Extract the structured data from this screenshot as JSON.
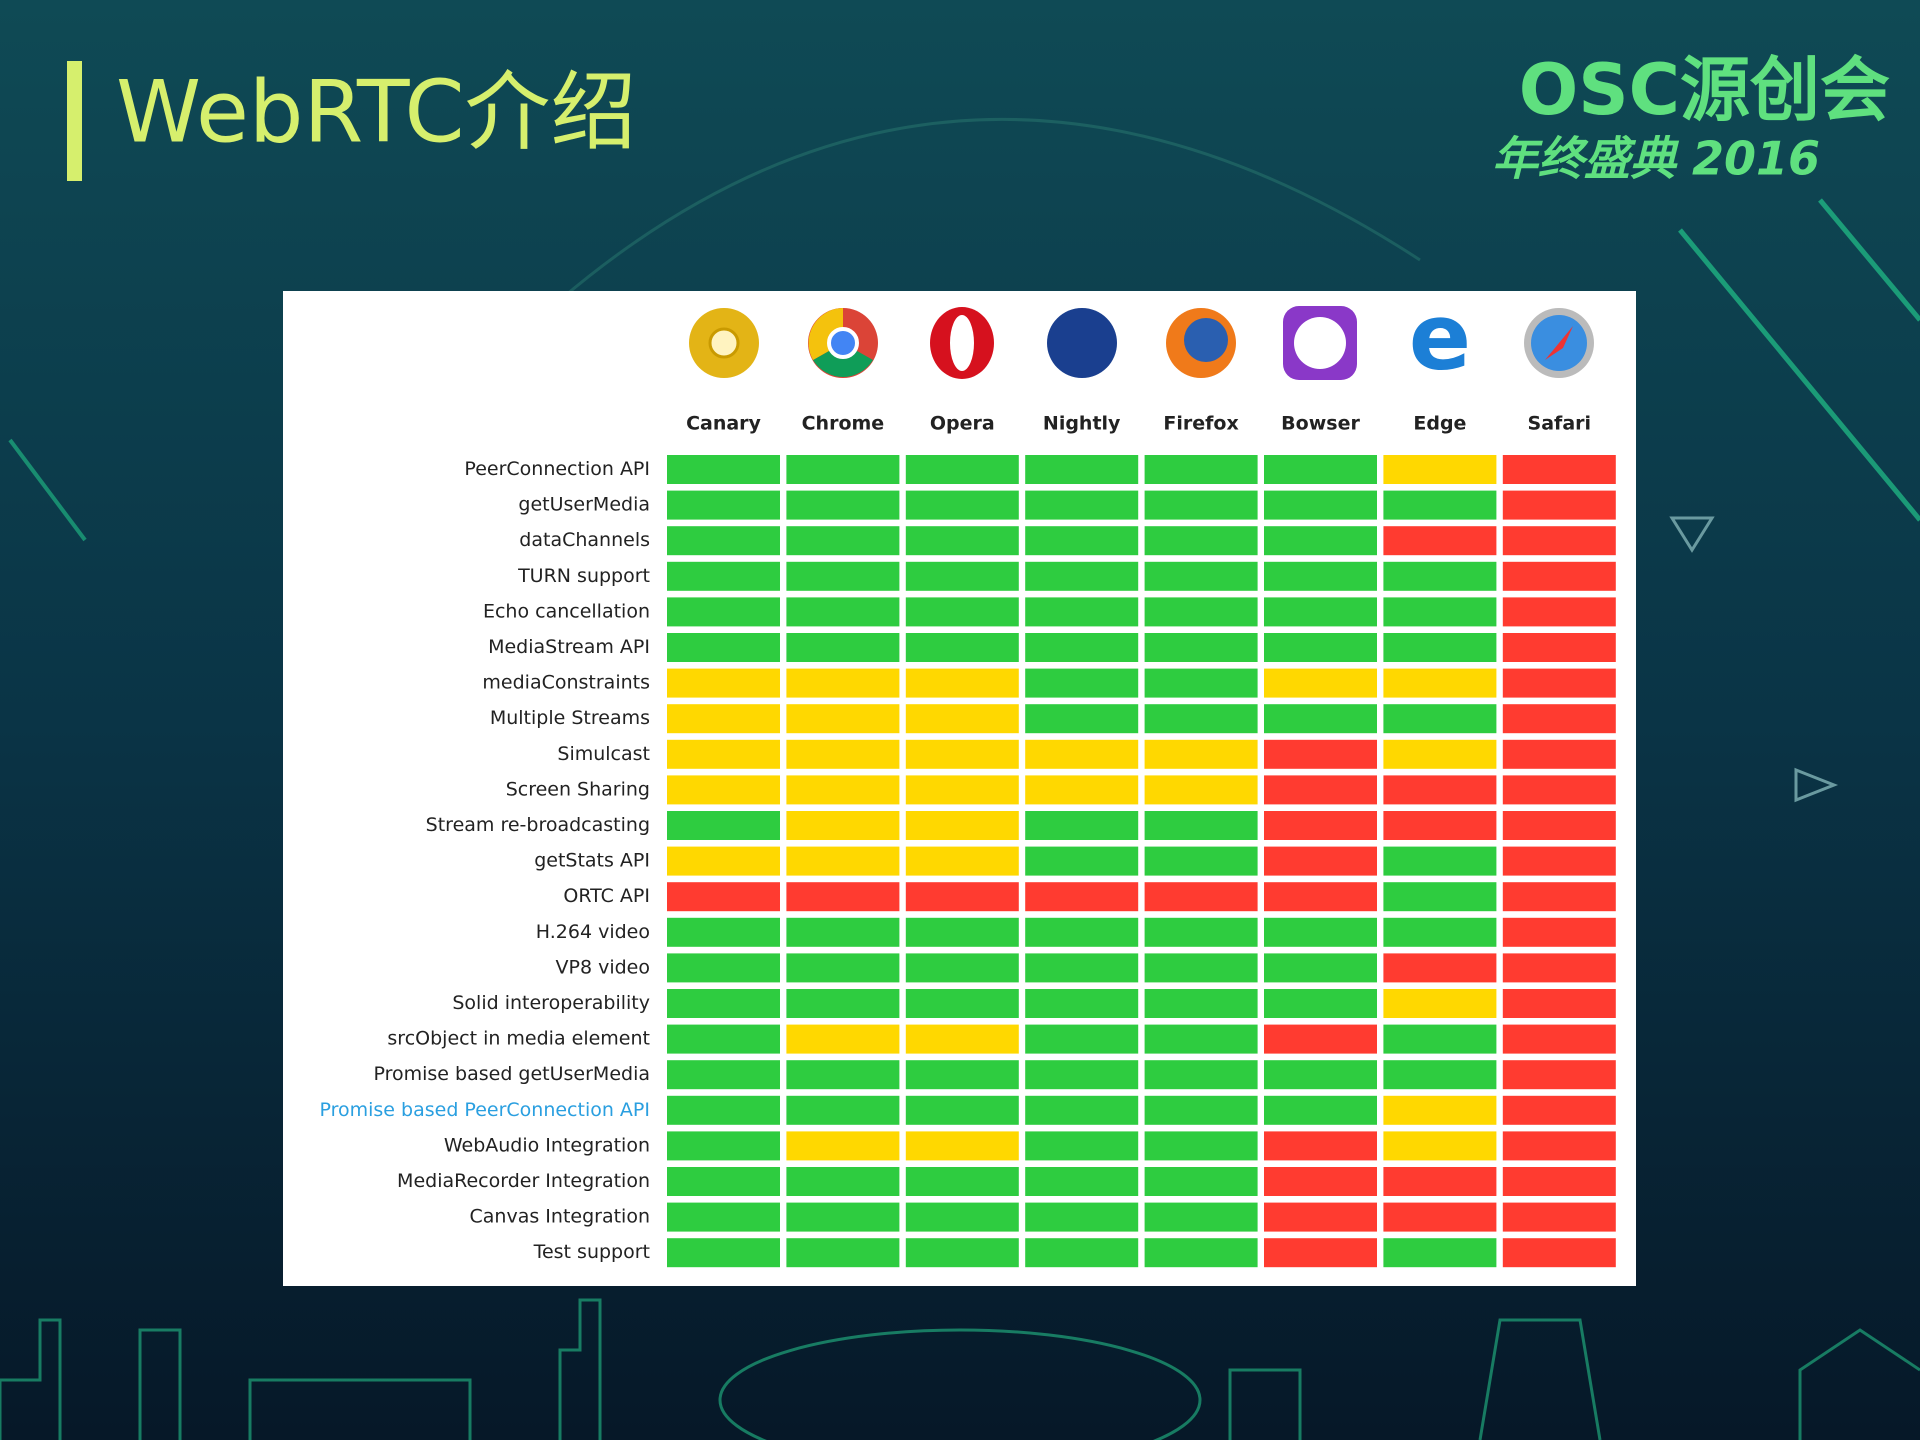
{
  "header": {
    "title": "WebRTC介绍",
    "logo": "OSC源创会",
    "logo_sub": "年终盛典 2016"
  },
  "table": {
    "columns": [
      "Canary",
      "Chrome",
      "Opera",
      "Nightly",
      "Firefox",
      "Bowser",
      "Edge",
      "Safari"
    ],
    "colors": {
      "g": "#2ecc40",
      "y": "#ffd800",
      "r": "#ff3b30"
    },
    "rows": [
      {
        "label": "PeerConnection API",
        "cells": [
          "g",
          "g",
          "g",
          "g",
          "g",
          "g",
          "y",
          "r"
        ]
      },
      {
        "label": "getUserMedia",
        "cells": [
          "g",
          "g",
          "g",
          "g",
          "g",
          "g",
          "g",
          "r"
        ]
      },
      {
        "label": "dataChannels",
        "cells": [
          "g",
          "g",
          "g",
          "g",
          "g",
          "g",
          "r",
          "r"
        ]
      },
      {
        "label": "TURN support",
        "cells": [
          "g",
          "g",
          "g",
          "g",
          "g",
          "g",
          "g",
          "r"
        ]
      },
      {
        "label": "Echo cancellation",
        "cells": [
          "g",
          "g",
          "g",
          "g",
          "g",
          "g",
          "g",
          "r"
        ]
      },
      {
        "label": "MediaStream API",
        "cells": [
          "g",
          "g",
          "g",
          "g",
          "g",
          "g",
          "g",
          "r"
        ]
      },
      {
        "label": "mediaConstraints",
        "cells": [
          "y",
          "y",
          "y",
          "g",
          "g",
          "y",
          "y",
          "r"
        ]
      },
      {
        "label": "Multiple Streams",
        "cells": [
          "y",
          "y",
          "y",
          "g",
          "g",
          "g",
          "g",
          "r"
        ]
      },
      {
        "label": "Simulcast",
        "cells": [
          "y",
          "y",
          "y",
          "y",
          "y",
          "r",
          "y",
          "r"
        ]
      },
      {
        "label": "Screen Sharing",
        "cells": [
          "y",
          "y",
          "y",
          "y",
          "y",
          "r",
          "r",
          "r"
        ]
      },
      {
        "label": "Stream re-broadcasting",
        "cells": [
          "g",
          "y",
          "y",
          "g",
          "g",
          "r",
          "r",
          "r"
        ]
      },
      {
        "label": "getStats API",
        "cells": [
          "y",
          "y",
          "y",
          "g",
          "g",
          "r",
          "g",
          "r"
        ]
      },
      {
        "label": "ORTC API",
        "cells": [
          "r",
          "r",
          "r",
          "r",
          "r",
          "r",
          "g",
          "r"
        ]
      },
      {
        "label": "H.264 video",
        "cells": [
          "g",
          "g",
          "g",
          "g",
          "g",
          "g",
          "g",
          "r"
        ]
      },
      {
        "label": "VP8 video",
        "cells": [
          "g",
          "g",
          "g",
          "g",
          "g",
          "g",
          "r",
          "r"
        ]
      },
      {
        "label": "Solid interoperability",
        "cells": [
          "g",
          "g",
          "g",
          "g",
          "g",
          "g",
          "y",
          "r"
        ]
      },
      {
        "label": "srcObject in media element",
        "cells": [
          "g",
          "y",
          "y",
          "g",
          "g",
          "r",
          "g",
          "r"
        ]
      },
      {
        "label": "Promise based getUserMedia",
        "cells": [
          "g",
          "g",
          "g",
          "g",
          "g",
          "g",
          "g",
          "r"
        ]
      },
      {
        "label": "Promise based PeerConnection API",
        "link": true,
        "cells": [
          "g",
          "g",
          "g",
          "g",
          "g",
          "g",
          "y",
          "r"
        ]
      },
      {
        "label": "WebAudio Integration",
        "cells": [
          "g",
          "y",
          "y",
          "g",
          "g",
          "r",
          "y",
          "r"
        ]
      },
      {
        "label": "MediaRecorder Integration",
        "cells": [
          "g",
          "g",
          "g",
          "g",
          "g",
          "r",
          "r",
          "r"
        ]
      },
      {
        "label": "Canvas Integration",
        "cells": [
          "g",
          "g",
          "g",
          "g",
          "g",
          "r",
          "r",
          "r"
        ]
      },
      {
        "label": "Test support",
        "cells": [
          "g",
          "g",
          "g",
          "g",
          "g",
          "r",
          "g",
          "r"
        ]
      }
    ]
  }
}
